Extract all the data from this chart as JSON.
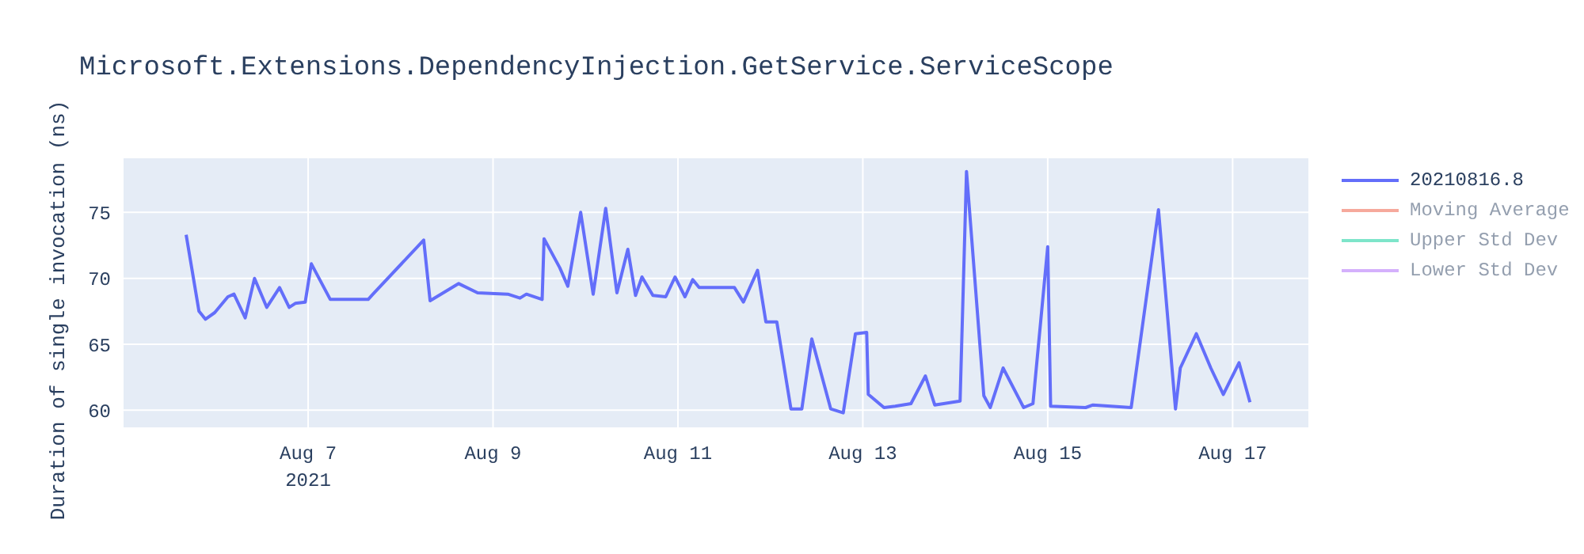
{
  "chart_data": {
    "type": "line",
    "title": "Microsoft.Extensions.DependencyInjection.GetService.ServiceScope",
    "ylabel": "Duration of single invocation (ns)",
    "x": [
      "2021-08-05T16:20",
      "2021-08-05T19:40",
      "2021-08-05T21:20",
      "2021-08-05T23:45",
      "2021-08-06T03:10",
      "2021-08-06T04:45",
      "2021-08-06T07:40",
      "2021-08-06T10:05",
      "2021-08-06T13:15",
      "2021-08-06T16:35",
      "2021-08-06T19:05",
      "2021-08-06T20:40",
      "2021-08-06T23:15",
      "2021-08-07T00:50",
      "2021-08-07T05:45",
      "2021-08-07T15:35",
      "2021-08-07T16:50",
      "2021-08-08T06:00",
      "2021-08-08T07:40",
      "2021-08-08T15:05",
      "2021-08-08T20:00",
      "2021-08-09T03:50",
      "2021-08-09T07:00",
      "2021-08-09T08:40",
      "2021-08-09T12:45",
      "2021-08-09T13:15",
      "2021-08-09T17:20",
      "2021-08-09T19:25",
      "2021-08-09T22:45",
      "2021-08-10T02:00",
      "2021-08-10T05:15",
      "2021-08-10T08:10",
      "2021-08-10T11:00",
      "2021-08-10T13:00",
      "2021-08-10T14:40",
      "2021-08-10T17:30",
      "2021-08-10T20:50",
      "2021-08-10T23:15",
      "2021-08-11T01:50",
      "2021-08-11T03:50",
      "2021-08-11T05:30",
      "2021-08-11T09:10",
      "2021-08-11T14:40",
      "2021-08-11T17:00",
      "2021-08-11T20:40",
      "2021-08-11T22:50",
      "2021-08-12T01:40",
      "2021-08-12T05:20",
      "2021-08-12T08:10",
      "2021-08-12T10:45",
      "2021-08-12T15:40",
      "2021-08-12T18:55",
      "2021-08-12T22:05",
      "2021-08-13T01:00",
      "2021-08-13T01:25",
      "2021-08-13T05:30",
      "2021-08-13T08:25",
      "2021-08-13T12:30",
      "2021-08-13T16:15",
      "2021-08-13T18:40",
      "2021-08-14T01:15",
      "2021-08-14T02:55",
      "2021-08-14T07:25",
      "2021-08-14T09:05",
      "2021-08-14T12:25",
      "2021-08-14T17:45",
      "2021-08-14T20:10",
      "2021-08-15T00:00",
      "2021-08-15T00:45",
      "2021-08-15T09:50",
      "2021-08-15T11:45",
      "2021-08-15T21:40",
      "2021-08-16T04:45",
      "2021-08-16T09:10",
      "2021-08-16T10:25",
      "2021-08-16T14:35",
      "2021-08-16T18:20",
      "2021-08-16T21:35",
      "2021-08-17T01:40",
      "2021-08-17T04:30"
    ],
    "series": [
      {
        "name": "20210816.8",
        "color": "#636efa",
        "values": [
          73.3,
          67.5,
          66.9,
          67.4,
          68.6,
          68.8,
          67.0,
          70.0,
          67.8,
          69.3,
          67.8,
          68.1,
          68.2,
          71.1,
          68.4,
          68.4,
          68.8,
          72.9,
          68.3,
          69.6,
          68.9,
          68.8,
          68.5,
          68.8,
          68.4,
          73.0,
          70.8,
          69.4,
          75.0,
          68.8,
          75.3,
          68.9,
          72.2,
          68.7,
          70.1,
          68.7,
          68.6,
          70.1,
          68.6,
          69.9,
          69.3,
          69.3,
          69.3,
          68.2,
          70.6,
          66.7,
          66.7,
          60.1,
          60.1,
          65.4,
          60.1,
          59.8,
          65.8,
          65.9,
          61.2,
          60.2,
          60.3,
          60.5,
          62.6,
          60.4,
          60.7,
          78.1,
          61.1,
          60.2,
          63.2,
          60.2,
          60.5,
          72.4,
          60.3,
          60.2,
          60.4,
          60.2,
          75.2,
          60.1,
          63.2,
          65.8,
          63.2,
          61.2,
          63.6,
          60.6
        ]
      },
      {
        "name": "Moving Average",
        "color": "#ef553b",
        "values": [
          null,
          null,
          null,
          null,
          null,
          null,
          null,
          null,
          null,
          null,
          null,
          null,
          null,
          null,
          null,
          null,
          null,
          null,
          null,
          null,
          null,
          null,
          null,
          null,
          null,
          null,
          null,
          null,
          null,
          null,
          null,
          null,
          null,
          null,
          null,
          null,
          null,
          null,
          null,
          null,
          null,
          null,
          null,
          null,
          null,
          null,
          null,
          null,
          null,
          null,
          null,
          null,
          null,
          null,
          null,
          null,
          null,
          null,
          null,
          null,
          null,
          null,
          null,
          null,
          null,
          null,
          null,
          null,
          null,
          null,
          null,
          null,
          null,
          null,
          null,
          null,
          null,
          null,
          null,
          null
        ]
      },
      {
        "name": "Upper Std Dev",
        "color": "#00cc96",
        "values": [
          null,
          null,
          null,
          null,
          null,
          null,
          null,
          null,
          null,
          null,
          null,
          null,
          null,
          null,
          null,
          null,
          null,
          null,
          null,
          null,
          null,
          null,
          null,
          null,
          null,
          null,
          null,
          null,
          null,
          null,
          null,
          null,
          null,
          null,
          null,
          null,
          null,
          null,
          null,
          null,
          null,
          null,
          null,
          null,
          null,
          null,
          null,
          null,
          null,
          null,
          null,
          null,
          null,
          null,
          null,
          null,
          null,
          null,
          null,
          null,
          null,
          null,
          null,
          null,
          null,
          null,
          null,
          null,
          null,
          null,
          null,
          null,
          null,
          null,
          null,
          null,
          null,
          null,
          null,
          null
        ]
      },
      {
        "name": "Lower Std Dev",
        "color": "#ab63fa",
        "values": [
          null,
          null,
          null,
          null,
          null,
          null,
          null,
          null,
          null,
          null,
          null,
          null,
          null,
          null,
          null,
          null,
          null,
          null,
          null,
          null,
          null,
          null,
          null,
          null,
          null,
          null,
          null,
          null,
          null,
          null,
          null,
          null,
          null,
          null,
          null,
          null,
          null,
          null,
          null,
          null,
          null,
          null,
          null,
          null,
          null,
          null,
          null,
          null,
          null,
          null,
          null,
          null,
          null,
          null,
          null,
          null,
          null,
          null,
          null,
          null,
          null,
          null,
          null,
          null,
          null,
          null,
          null,
          null,
          null,
          null,
          null,
          null,
          null,
          null,
          null,
          null,
          null,
          null,
          null,
          null
        ]
      }
    ],
    "xlim": [
      "2021-08-05T00:05",
      "2021-08-17T19:40"
    ],
    "xticks": [
      {
        "value": "2021-08-07",
        "label": "Aug 7\n2021"
      },
      {
        "value": "2021-08-09",
        "label": "Aug 9"
      },
      {
        "value": "2021-08-11",
        "label": "Aug 11"
      },
      {
        "value": "2021-08-13",
        "label": "Aug 13"
      },
      {
        "value": "2021-08-15",
        "label": "Aug 15"
      },
      {
        "value": "2021-08-17",
        "label": "Aug 17"
      }
    ],
    "ylim": [
      58.7,
      79.1
    ],
    "yticks": [
      60,
      65,
      70,
      75
    ],
    "grid": true,
    "legend": "top right",
    "marker": "none",
    "line_style": "solid"
  }
}
